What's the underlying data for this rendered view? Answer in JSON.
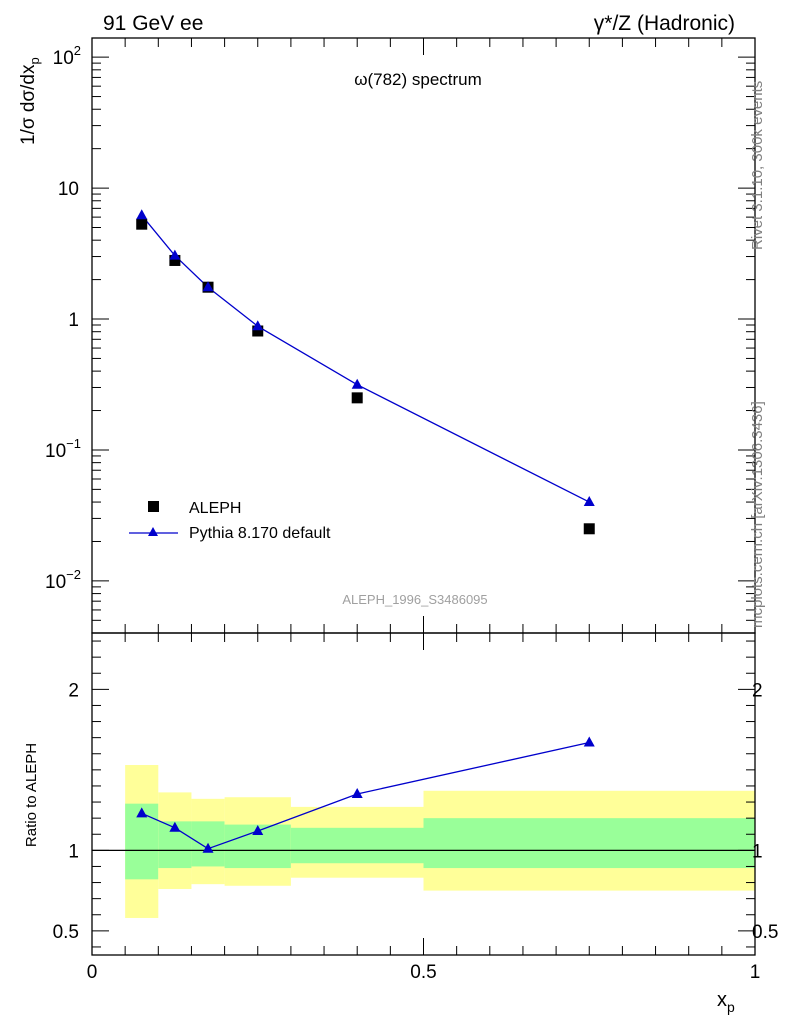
{
  "header": {
    "left": "91 GeV ee",
    "right": "γ*/Z (Hadronic)"
  },
  "side_labels": {
    "top": "Rivet 3.1.10,  300k events",
    "bottom": "mcplots.cern.ch [arXiv:1306.3436]"
  },
  "watermark": "ALEPH_1996_S3486095",
  "colors": {
    "mc": "#0000cc",
    "band_inner": "#99ff99",
    "band_outer": "#ffff99",
    "data": "#000000"
  },
  "chart_data": [
    {
      "type": "scatter",
      "title": "ω(782) spectrum",
      "ylabel": "1/σ dσ/dx_p",
      "ylabel_parts": {
        "main": "1/σ dσ/dx",
        "sub": "p"
      },
      "yscale": "log",
      "xlim": [
        0,
        1
      ],
      "ylim": [
        0.004,
        140
      ],
      "ytick_labels": [
        {
          "value": 0.01,
          "base": "10",
          "exp": "−2"
        },
        {
          "value": 0.1,
          "base": "10",
          "exp": "−1"
        },
        {
          "value": 1,
          "base": "1",
          "exp": ""
        },
        {
          "value": 10,
          "base": "10",
          "exp": ""
        },
        {
          "value": 100,
          "base": "10",
          "exp": "2"
        }
      ],
      "legend_position": "bottom-left",
      "series": [
        {
          "name": "ALEPH",
          "marker": "square",
          "x": [
            0.075,
            0.125,
            0.175,
            0.25,
            0.4,
            0.75
          ],
          "y": [
            5.3,
            2.8,
            1.75,
            0.81,
            0.25,
            0.025
          ]
        },
        {
          "name": "Pythia 8.170 default",
          "marker": "triangle",
          "x": [
            0.075,
            0.125,
            0.175,
            0.25,
            0.4,
            0.75
          ],
          "y": [
            6.2,
            3.05,
            1.75,
            0.88,
            0.315,
            0.04
          ]
        }
      ]
    },
    {
      "type": "line",
      "ylabel": "Ratio to ALEPH",
      "xlabel": "x_p",
      "xlabel_parts": {
        "main": "x",
        "sub": "p"
      },
      "xlim": [
        0,
        1
      ],
      "ylim": [
        0.35,
        2.35
      ],
      "xtick_labels": [
        {
          "value": 0,
          "label": "0"
        },
        {
          "value": 0.5,
          "label": "0.5"
        },
        {
          "value": 1,
          "label": "1"
        }
      ],
      "ytick_labels": [
        {
          "value": 0.5,
          "label": "0.5"
        },
        {
          "value": 1,
          "label": "1"
        },
        {
          "value": 2,
          "label": "2"
        }
      ],
      "reference_line": 1,
      "bands": [
        {
          "x0": 0.05,
          "x1": 0.1,
          "inner": [
            0.82,
            1.29
          ],
          "outer": [
            0.58,
            1.53
          ]
        },
        {
          "x0": 0.1,
          "x1": 0.15,
          "inner": [
            0.89,
            1.18
          ],
          "outer": [
            0.76,
            1.36
          ]
        },
        {
          "x0": 0.15,
          "x1": 0.2,
          "inner": [
            0.9,
            1.18
          ],
          "outer": [
            0.79,
            1.32
          ]
        },
        {
          "x0": 0.2,
          "x1": 0.3,
          "inner": [
            0.89,
            1.16
          ],
          "outer": [
            0.78,
            1.33
          ]
        },
        {
          "x0": 0.3,
          "x1": 0.5,
          "inner": [
            0.92,
            1.14
          ],
          "outer": [
            0.83,
            1.27
          ]
        },
        {
          "x0": 0.5,
          "x1": 1.0,
          "inner": [
            0.89,
            1.2
          ],
          "outer": [
            0.75,
            1.37
          ]
        }
      ],
      "series": [
        {
          "name": "Pythia 8.170 default",
          "x": [
            0.075,
            0.125,
            0.175,
            0.25,
            0.4,
            0.75
          ],
          "y": [
            1.23,
            1.14,
            1.01,
            1.12,
            1.35,
            1.67
          ]
        }
      ]
    }
  ]
}
